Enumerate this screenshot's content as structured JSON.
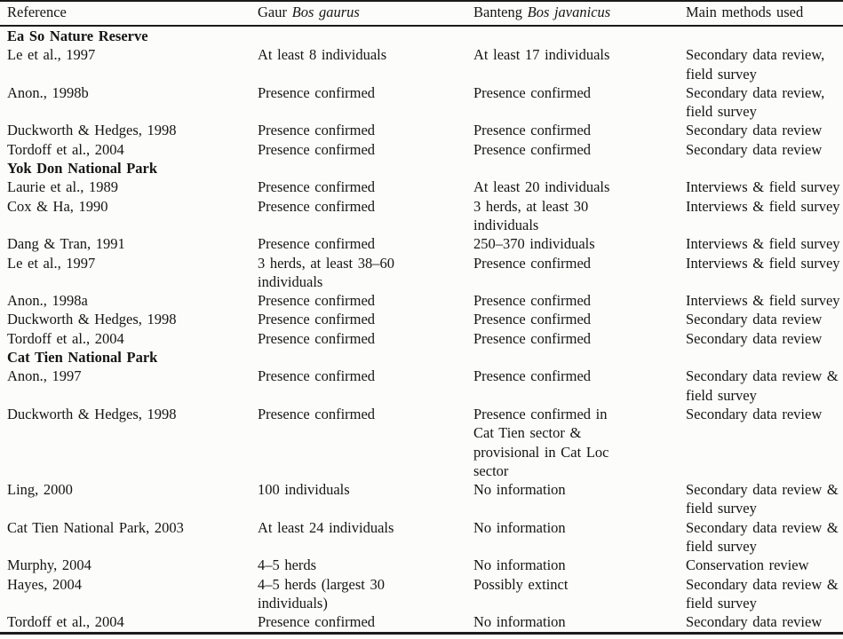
{
  "table": {
    "headers": {
      "reference": "Reference",
      "gaur_label": "Gaur ",
      "gaur_species": "Bos gaurus",
      "banteng_label": "Banteng ",
      "banteng_species": "Bos javanicus",
      "methods": "Main methods used"
    },
    "sections": [
      {
        "title": "Ea So Nature Reserve",
        "rows": [
          {
            "reference": "Le et al., 1997",
            "gaur": "At least 8 individuals",
            "banteng": "At least 17 individuals",
            "methods": "Secondary data review,\nfield survey"
          },
          {
            "reference": "Anon., 1998b",
            "gaur": "Presence confirmed",
            "banteng": "Presence confirmed",
            "methods": "Secondary data review,\nfield survey"
          },
          {
            "reference": "Duckworth & Hedges, 1998",
            "gaur": "Presence confirmed",
            "banteng": "Presence confirmed",
            "methods": "Secondary data review"
          },
          {
            "reference": "Tordoff et al., 2004",
            "gaur": "Presence confirmed",
            "banteng": "Presence confirmed",
            "methods": "Secondary data review"
          }
        ]
      },
      {
        "title": "Yok Don National Park",
        "rows": [
          {
            "reference": "Laurie et al., 1989",
            "gaur": "Presence confirmed",
            "banteng": "At least 20 individuals",
            "methods": "Interviews & field survey"
          },
          {
            "reference": "Cox & Ha, 1990",
            "gaur": "Presence confirmed",
            "banteng": "3 herds, at least 30\nindividuals",
            "methods": "Interviews & field survey"
          },
          {
            "reference": "Dang & Tran, 1991",
            "gaur": "Presence confirmed",
            "banteng": "250–370 individuals",
            "methods": "Interviews & field survey"
          },
          {
            "reference": "Le et al., 1997",
            "gaur": "3 herds, at least 38–60\nindividuals",
            "banteng": "Presence confirmed",
            "methods": "Interviews & field survey"
          },
          {
            "reference": "Anon., 1998a",
            "gaur": "Presence confirmed",
            "banteng": "Presence confirmed",
            "methods": "Interviews & field survey"
          },
          {
            "reference": "Duckworth & Hedges, 1998",
            "gaur": "Presence confirmed",
            "banteng": "Presence confirmed",
            "methods": "Secondary data review"
          },
          {
            "reference": "Tordoff et al., 2004",
            "gaur": "Presence confirmed",
            "banteng": "Presence confirmed",
            "methods": "Secondary data review"
          }
        ]
      },
      {
        "title": "Cat Tien National Park",
        "rows": [
          {
            "reference": "Anon., 1997",
            "gaur": "Presence confirmed",
            "banteng": "Presence confirmed",
            "methods": "Secondary data review &\nfield survey"
          },
          {
            "reference": "Duckworth & Hedges, 1998",
            "gaur": "Presence confirmed",
            "banteng": "Presence confirmed in\nCat Tien sector &\nprovisional in Cat Loc\nsector",
            "methods": "Secondary data review"
          },
          {
            "reference": "Ling, 2000",
            "gaur": "100 individuals",
            "banteng": "No information",
            "methods": "Secondary data review &\nfield survey"
          },
          {
            "reference": "Cat Tien National Park, 2003",
            "gaur": "At least 24 individuals",
            "banteng": "No information",
            "methods": "Secondary data review &\nfield survey"
          },
          {
            "reference": "Murphy, 2004",
            "gaur": "4–5 herds",
            "banteng": "No information",
            "methods": "Conservation review"
          },
          {
            "reference": "Hayes, 2004",
            "gaur": "4–5 herds (largest 30\nindividuals)",
            "banteng": "Possibly extinct",
            "methods": "Secondary data review &\nfield survey"
          },
          {
            "reference": "Tordoff et al., 2004",
            "gaur": "Presence confirmed",
            "banteng": "No information",
            "methods": "Secondary data review"
          }
        ]
      }
    ]
  },
  "colors": {
    "text": "#151515",
    "rule": "#1b1b1b",
    "background": "#fcfcfb"
  }
}
